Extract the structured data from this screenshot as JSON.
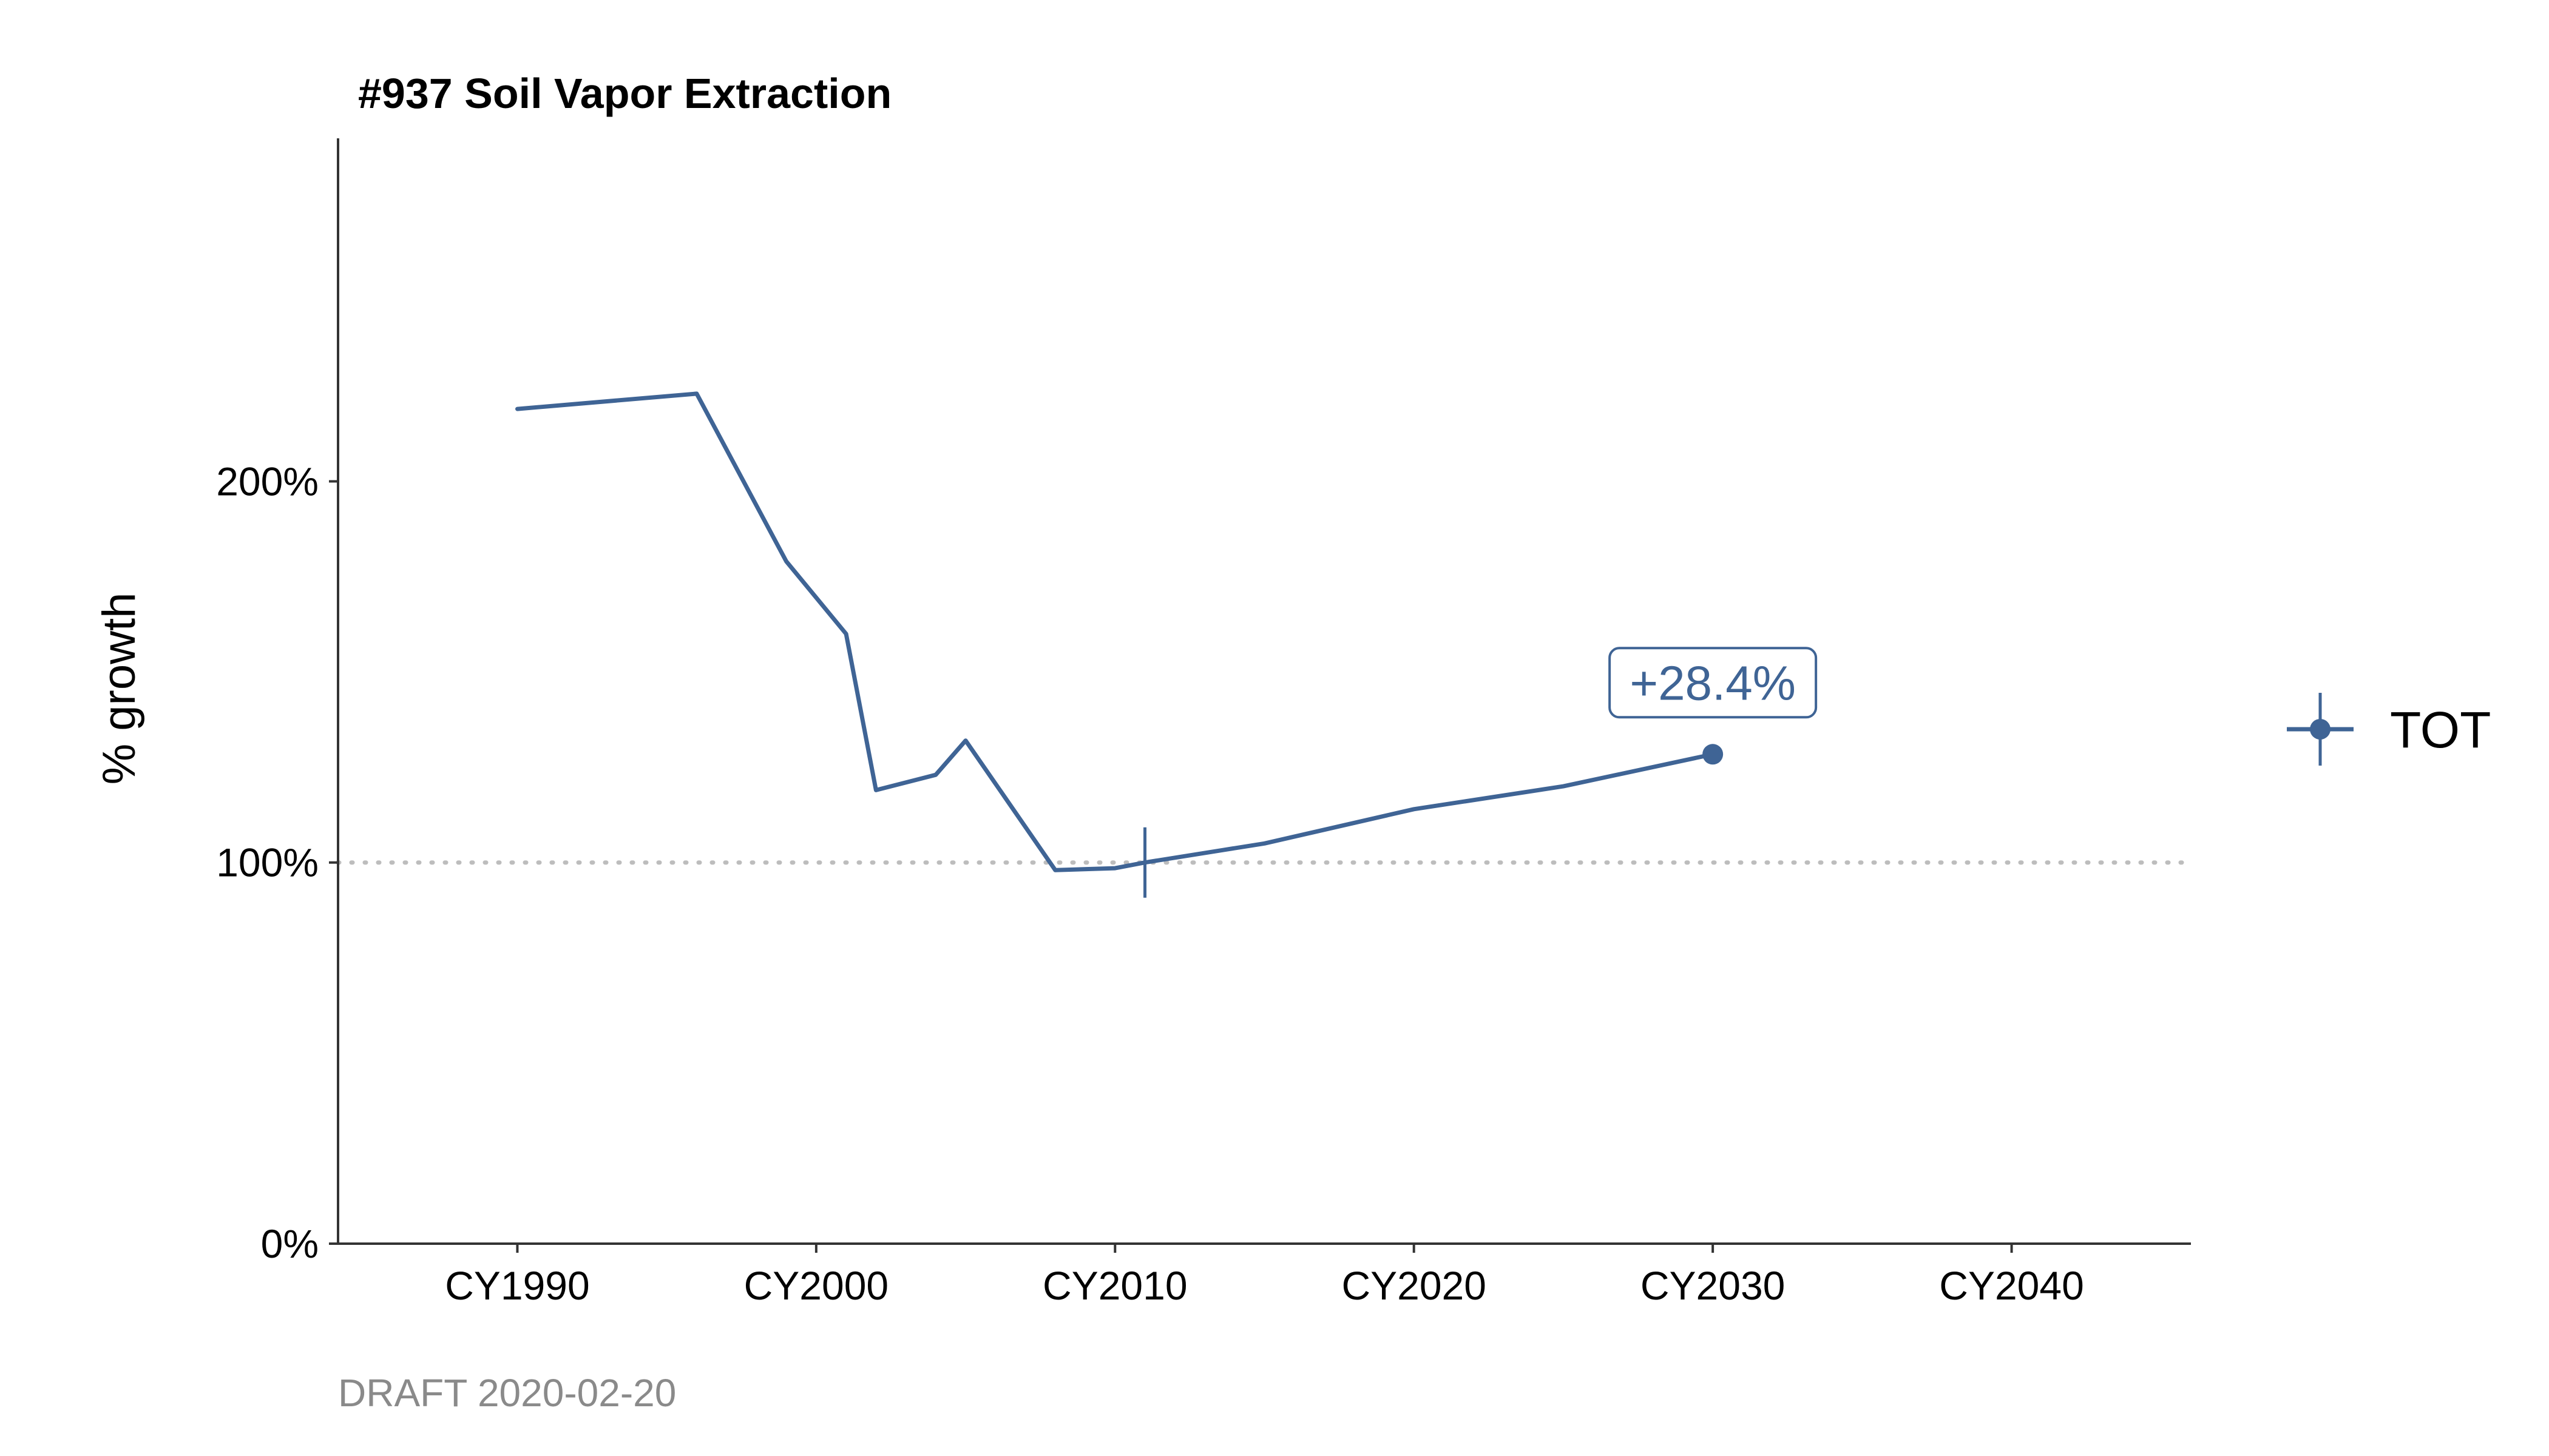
{
  "chart_data": {
    "type": "line",
    "title": "#937 Soil Vapor Extraction",
    "xlabel": "",
    "ylabel": "% growth",
    "caption": "DRAFT 2020-02-20",
    "xlim": [
      1984,
      2046
    ],
    "ylim": [
      0,
      290
    ],
    "x_ticks": [
      {
        "value": 1990,
        "label": "CY1990"
      },
      {
        "value": 2000,
        "label": "CY2000"
      },
      {
        "value": 2010,
        "label": "CY2010"
      },
      {
        "value": 2020,
        "label": "CY2020"
      },
      {
        "value": 2030,
        "label": "CY2030"
      },
      {
        "value": 2040,
        "label": "CY2040"
      }
    ],
    "y_ticks": [
      {
        "value": 0,
        "label": "0%"
      },
      {
        "value": 100,
        "label": "100%"
      },
      {
        "value": 200,
        "label": "200%"
      }
    ],
    "reference_line": {
      "y": 100,
      "style": "dotted",
      "color": "#bdbdbd"
    },
    "grid": false,
    "legend": {
      "position": "right"
    },
    "series": [
      {
        "name": "TOT",
        "color": "#3f6495",
        "x": [
          1990,
          1996,
          1999,
          2001,
          2002,
          2004,
          2005,
          2008,
          2010,
          2011,
          2015,
          2020,
          2025,
          2030
        ],
        "y": [
          219,
          223,
          179,
          160,
          119,
          123,
          132,
          98,
          98.5,
          100,
          105,
          114,
          120,
          128.4
        ],
        "base_marker": {
          "x": 2011,
          "y": 100
        },
        "end_marker": {
          "x": 2030,
          "y": 128.4
        },
        "callout": {
          "x": 2030,
          "y": 128.4,
          "label": "+28.4%"
        }
      }
    ]
  }
}
